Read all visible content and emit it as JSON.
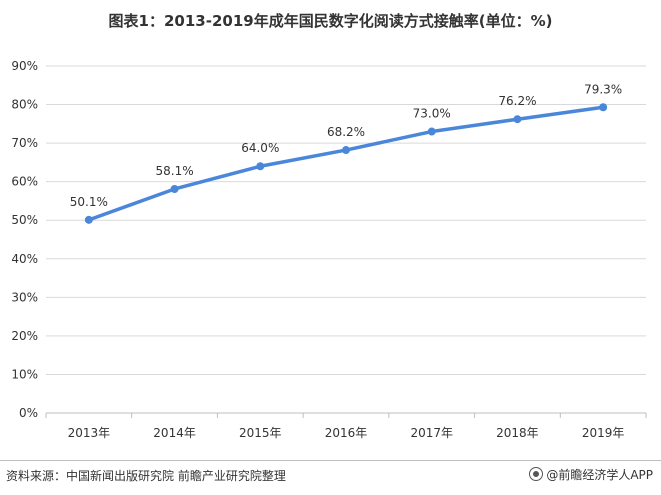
{
  "chart_data": {
    "type": "line",
    "title": "图表1：2013-2019年成年国民数字化阅读方式接触率(单位：%)",
    "categories": [
      "2013年",
      "2014年",
      "2015年",
      "2016年",
      "2017年",
      "2018年",
      "2019年"
    ],
    "series": [
      {
        "values": [
          50.1,
          58.1,
          64.0,
          68.2,
          73.0,
          76.2,
          79.3
        ]
      }
    ],
    "data_labels": [
      "50.1%",
      "58.1%",
      "64.0%",
      "68.2%",
      "73.0%",
      "76.2%",
      "79.3%"
    ],
    "ylim": [
      0,
      90
    ],
    "y_ticks": [
      0,
      10,
      20,
      30,
      40,
      50,
      60,
      70,
      80,
      90
    ],
    "y_tick_labels": [
      "0%",
      "10%",
      "20%",
      "30%",
      "40%",
      "50%",
      "60%",
      "70%",
      "80%",
      "90%"
    ],
    "grid": true,
    "legend": "none",
    "line_color": "#4a86d9"
  },
  "footer": {
    "source": "资料来源：中国新闻出版研究院 前瞻产业研究院整理",
    "brand": "@前瞻经济学人APP"
  }
}
